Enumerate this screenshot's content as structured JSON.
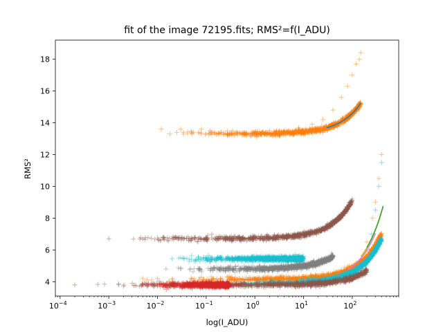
{
  "chart_data": {
    "type": "scatter",
    "title": "fit of the image 72195.fits; RMS²=f(I_ADU)",
    "xlabel": "log(I_ADU)",
    "ylabel": "RMS²",
    "xscale": "log",
    "xlim": [
      8e-05,
      900
    ],
    "ylim": [
      3.1,
      19.2
    ],
    "xticks": [
      {
        "value": 0.0001,
        "base": "10",
        "exp": "−4"
      },
      {
        "value": 0.001,
        "base": "10",
        "exp": "−3"
      },
      {
        "value": 0.01,
        "base": "10",
        "exp": "−2"
      },
      {
        "value": 0.1,
        "base": "10",
        "exp": "−1"
      },
      {
        "value": 1,
        "base": "10",
        "exp": "0"
      },
      {
        "value": 10,
        "base": "10",
        "exp": "1"
      },
      {
        "value": 100,
        "base": "10",
        "exp": "2"
      }
    ],
    "yticks": [
      4,
      6,
      8,
      10,
      12,
      14,
      16,
      18
    ],
    "grid": false,
    "legend": "none",
    "marker": "plus",
    "series": [
      {
        "color": "#ff7f0e",
        "base": 13.3,
        "coef": 0.0129,
        "xmin": 0.012,
        "xmax": 150,
        "x": [
          0.012,
          0.018,
          0.03,
          0.05,
          0.08,
          0.12,
          0.2,
          0.35,
          0.6,
          1,
          2,
          4,
          8,
          15,
          25,
          40,
          60,
          80,
          100,
          120,
          140,
          150
        ],
        "y": [
          13.6,
          13.3,
          13.6,
          13.4,
          13.6,
          13.5,
          13.4,
          13.5,
          13.3,
          13.4,
          13.5,
          13.5,
          13.7,
          13.9,
          14.2,
          14.8,
          15.6,
          16.3,
          17.0,
          17.7,
          18.0,
          18.4
        ]
      },
      {
        "color": "#1f77b4",
        "fit_only": true,
        "base": 13.3,
        "coef": 0.0129,
        "xmin": 30,
        "xmax": 150,
        "x": [],
        "y": []
      },
      {
        "color": "#8c564b",
        "base": 6.72,
        "coef": 0.024,
        "xmin": 0.001,
        "xmax": 100,
        "x": [
          0.001,
          0.005,
          0.01,
          0.02,
          0.05,
          0.1,
          0.3,
          1,
          3,
          10,
          20,
          40,
          60,
          80,
          100
        ],
        "y": [
          6.7,
          6.7,
          6.75,
          6.7,
          6.75,
          6.75,
          6.75,
          6.8,
          6.85,
          6.95,
          7.2,
          7.7,
          8.2,
          8.7,
          9.2
        ]
      },
      {
        "color": "#17becf",
        "base": 5.45,
        "coef": 0.0,
        "xmin": 0.02,
        "xmax": 10,
        "x": [
          0.02,
          0.03,
          0.05,
          0.1,
          0.5,
          1,
          2,
          4,
          8,
          10
        ],
        "y": [
          5.45,
          5.5,
          5.4,
          5.45,
          5.45,
          5.5,
          5.5,
          5.55,
          5.6,
          5.6
        ]
      },
      {
        "color": "#7f7f7f",
        "base": 4.8,
        "coef": 0.02,
        "xmin": 0.015,
        "xmax": 40,
        "x": [
          0.015,
          0.03,
          0.08,
          0.3,
          1,
          3,
          10,
          20,
          40
        ],
        "y": [
          4.8,
          4.8,
          4.75,
          4.8,
          4.85,
          4.9,
          5.0,
          5.2,
          5.6
        ]
      },
      {
        "color": "#ff7f0e",
        "base": 4.15,
        "coef": 0.0072,
        "xmin": 0.005,
        "xmax": 400,
        "x": [
          0.005,
          0.01,
          0.05,
          0.2,
          1,
          5,
          20,
          60,
          100,
          150,
          200,
          260,
          300,
          350,
          400
        ],
        "y": [
          4.2,
          4.2,
          4.2,
          4.15,
          4.2,
          4.25,
          4.4,
          4.6,
          4.9,
          5.3,
          6.5,
          8.0,
          9.0,
          10.5,
          12.0
        ]
      },
      {
        "color": "#17becf",
        "base": 3.9,
        "coef": 0.007,
        "xmin": 0.5,
        "xmax": 400,
        "x": [
          0.5,
          1,
          3,
          10,
          30,
          60,
          100,
          150,
          200,
          250,
          300,
          350,
          400
        ],
        "y": [
          3.9,
          3.95,
          4.0,
          4.05,
          4.2,
          4.4,
          4.7,
          5.2,
          6.0,
          7.0,
          8.5,
          10.0,
          11.5
        ]
      },
      {
        "color": "#8c564b",
        "base": 3.8,
        "coef": 0.0045,
        "xmin": 0.0002,
        "xmax": 200,
        "x": [
          0.0002,
          0.005,
          0.02,
          0.1,
          1,
          10,
          50,
          100,
          200
        ],
        "y": [
          3.8,
          3.8,
          3.8,
          3.8,
          3.85,
          3.9,
          4.0,
          4.2,
          4.6
        ]
      },
      {
        "color": "#e377c2",
        "fit_only": true,
        "base": 3.9,
        "coef": 0.0105,
        "xmin": 80,
        "xmax": 300,
        "x": [],
        "y": []
      },
      {
        "color": "#bcbd22",
        "fit_only": true,
        "base": 3.9,
        "coef": 0.0112,
        "xmin": 150,
        "xmax": 430,
        "x": [],
        "y": []
      },
      {
        "color": "#2ca02c",
        "fit_only": true,
        "base": 3.9,
        "coef": 0.0113,
        "xmin": 200,
        "xmax": 430,
        "x": [],
        "y": []
      },
      {
        "color": "#d62728",
        "base": 3.8,
        "coef": 0.0,
        "xmin": 0.005,
        "xmax": 0.3,
        "x": [
          0.005,
          0.01,
          0.05,
          0.1,
          0.3
        ],
        "y": [
          3.8,
          3.8,
          3.8,
          3.8,
          3.8
        ]
      }
    ]
  }
}
